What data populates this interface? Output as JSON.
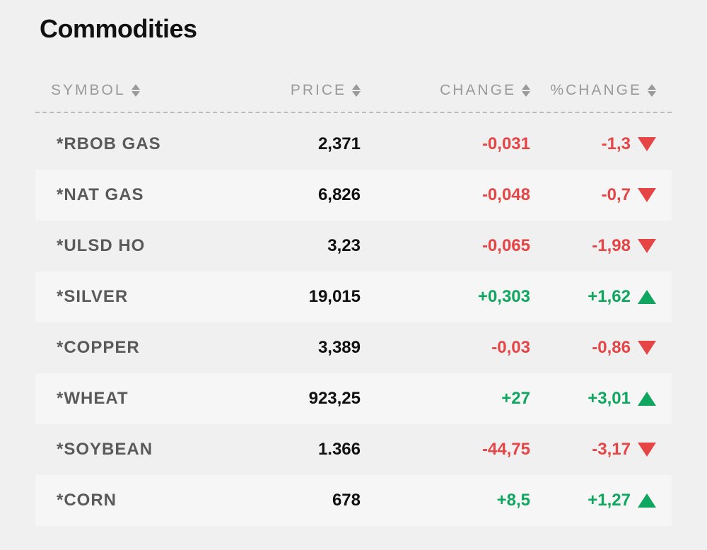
{
  "title": "Commodities",
  "colors": {
    "background": "#f0f0f0",
    "alt_row": "#f6f6f6",
    "text_heading": "#111111",
    "text_muted": "#9a9a9a",
    "text_symbol": "#5a5a5a",
    "up": "#0fa760",
    "down": "#e64545",
    "divider": "#bbbbbb"
  },
  "columns": {
    "symbol": "SYMBOL",
    "price": "PRICE",
    "change": "CHANGE",
    "pct": "%CHANGE"
  },
  "rows": [
    {
      "symbol": "*RBOB GAS",
      "price": "2,371",
      "change": "-0,031",
      "pct": "-1,3",
      "dir": "down"
    },
    {
      "symbol": "*NAT GAS",
      "price": "6,826",
      "change": "-0,048",
      "pct": "-0,7",
      "dir": "down"
    },
    {
      "symbol": "*ULSD HO",
      "price": "3,23",
      "change": "-0,065",
      "pct": "-1,98",
      "dir": "down"
    },
    {
      "symbol": "*SILVER",
      "price": "19,015",
      "change": "+0,303",
      "pct": "+1,62",
      "dir": "up"
    },
    {
      "symbol": "*COPPER",
      "price": "3,389",
      "change": "-0,03",
      "pct": "-0,86",
      "dir": "down"
    },
    {
      "symbol": "*WHEAT",
      "price": "923,25",
      "change": "+27",
      "pct": "+3,01",
      "dir": "up"
    },
    {
      "symbol": "*SOYBEAN",
      "price": "1.366",
      "change": "-44,75",
      "pct": "-3,17",
      "dir": "down"
    },
    {
      "symbol": "*CORN",
      "price": "678",
      "change": "+8,5",
      "pct": "+1,27",
      "dir": "up"
    }
  ]
}
